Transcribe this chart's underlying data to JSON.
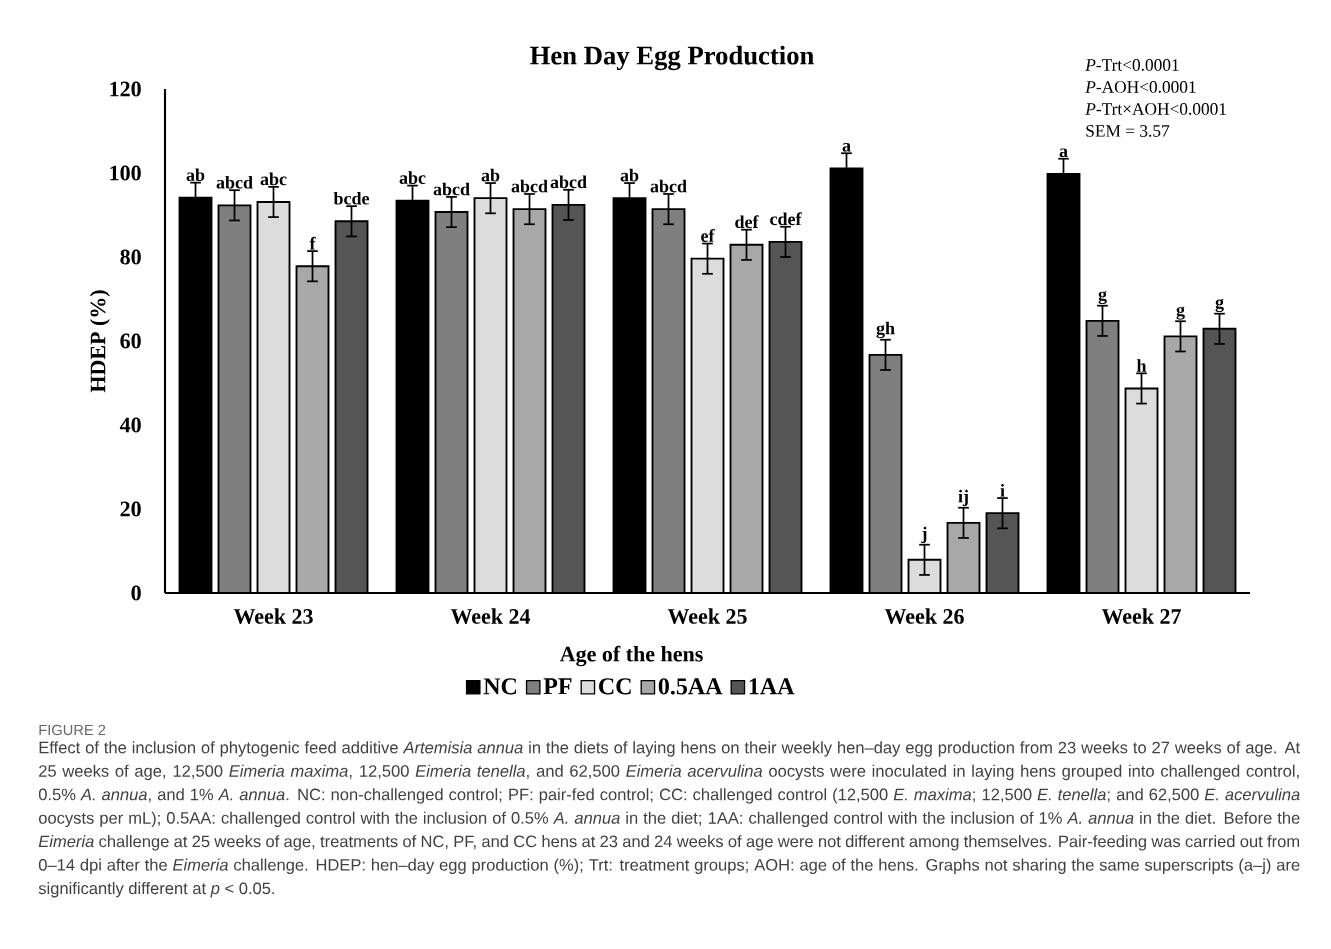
{
  "chart_data": {
    "type": "bar",
    "title": "Hen Day Egg Production",
    "xlabel": "Age of the hens",
    "ylabel": "HDEP (%)",
    "categories": [
      "Week 23",
      "Week 24",
      "Week 25",
      "Week 26",
      "Week 27"
    ],
    "series": [
      {
        "name": "NC",
        "color": "#000000",
        "values": [
          94.1,
          93.4,
          94.0,
          101.1,
          99.8
        ],
        "errors": [
          3.6,
          3.6,
          3.6,
          3.6,
          3.6
        ],
        "value_labels": [
          "ab",
          "abc",
          "ab",
          "a",
          "a"
        ]
      },
      {
        "name": "PF",
        "color": "#7f7f7f",
        "values": [
          92.3,
          90.7,
          91.4,
          56.7,
          64.8
        ],
        "errors": [
          3.6,
          3.6,
          3.6,
          3.6,
          3.6
        ],
        "value_labels": [
          "abcd",
          "abcd",
          "abcd",
          "gh",
          "g"
        ]
      },
      {
        "name": "CC",
        "color": "#dcdcdc",
        "values": [
          93.1,
          94.0,
          79.6,
          7.9,
          48.7
        ],
        "errors": [
          3.6,
          3.6,
          3.6,
          3.6,
          3.6
        ],
        "value_labels": [
          "abc",
          "ab",
          "ef",
          "j",
          "h"
        ]
      },
      {
        "name": "0.5AA",
        "color": "#a8a8a8",
        "values": [
          77.8,
          91.4,
          82.9,
          16.7,
          61.1
        ],
        "errors": [
          3.6,
          3.6,
          3.6,
          3.6,
          3.6
        ],
        "value_labels": [
          "f",
          "abcd",
          "def",
          "ij",
          "g"
        ]
      },
      {
        "name": "1AA",
        "color": "#555555",
        "values": [
          88.5,
          92.4,
          83.6,
          19.0,
          62.9
        ],
        "errors": [
          3.6,
          3.6,
          3.6,
          3.6,
          3.6
        ],
        "value_labels": [
          "bcde",
          "abcd",
          "cdef",
          "i",
          "g"
        ]
      }
    ],
    "ylim": [
      0,
      120
    ],
    "yticks": [
      0,
      20,
      40,
      60,
      80,
      100,
      120
    ],
    "grid": false,
    "legend": "bottom",
    "annotations": [
      "*P*-Trt<0.0001",
      "*P*-AOH<0.0001",
      "*P*-Trt×AOH<0.0001",
      "SEM = 3.57",
      "FIGURE 2",
      "Effect of the inclusion of phytogenic feed additive *Artemisia annua* in the diets of laying hens on their weekly hen–day egg production from 23 weeks to 27 weeks of age. At 25 weeks of age, 12,500 *Eimeria maxima*, 12,500 *Eimeria tenella*, and 62,500 *Eimeria acervulina* oocysts were inoculated in laying hens grouped into challenged control, 0.5% *A. annua*, and 1% *A. annua*. NC: non-challenged control; PF: pair-fed control; CC: challenged control (12,500 *E. maxima*; 12,500 *E. tenella*; and 62,500 *E. acervulina* oocysts per mL); 0.5AA: challenged control with the inclusion of 0.5% *A. annua* in the diet; 1AA: challenged control with the inclusion of 1% *A. annua* in the diet. Before the *Eimeria* challenge at 25 weeks of age, treatments of NC, PF, and CC hens at 23 and 24 weeks of age were not different among themselves. Pair-feeding was carried out from 0–14 dpi after the *Eimeria* challenge. HDEP: hen–day egg production (%); Trt: treatment groups; AOH: age of the hens. Graphs not sharing the same superscripts (a–j) are significantly different at *p* < 0.05."
    ]
  }
}
